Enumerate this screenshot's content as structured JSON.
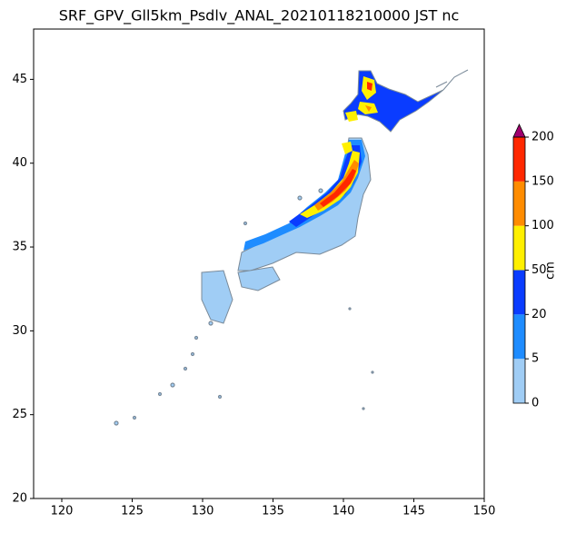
{
  "chart_data": {
    "type": "map",
    "title": "SRF_GPV_Gll5km_Psdlv_ANAL_20210118210000 JST nc",
    "xlim": [
      118,
      150
    ],
    "ylim": [
      20,
      48
    ],
    "xticks": [
      120,
      125,
      130,
      135,
      140,
      145,
      150
    ],
    "yticks": [
      20,
      25,
      30,
      35,
      40,
      45
    ],
    "colorbar": {
      "label": "cm",
      "levels": [
        0,
        5,
        20,
        50,
        100,
        150,
        200
      ],
      "colors": [
        "#a0cdf5",
        "#1e8cff",
        "#0a3cff",
        "#fff000",
        "#ff8c00",
        "#ff2800"
      ],
      "extend_color": "#a0006e"
    }
  }
}
